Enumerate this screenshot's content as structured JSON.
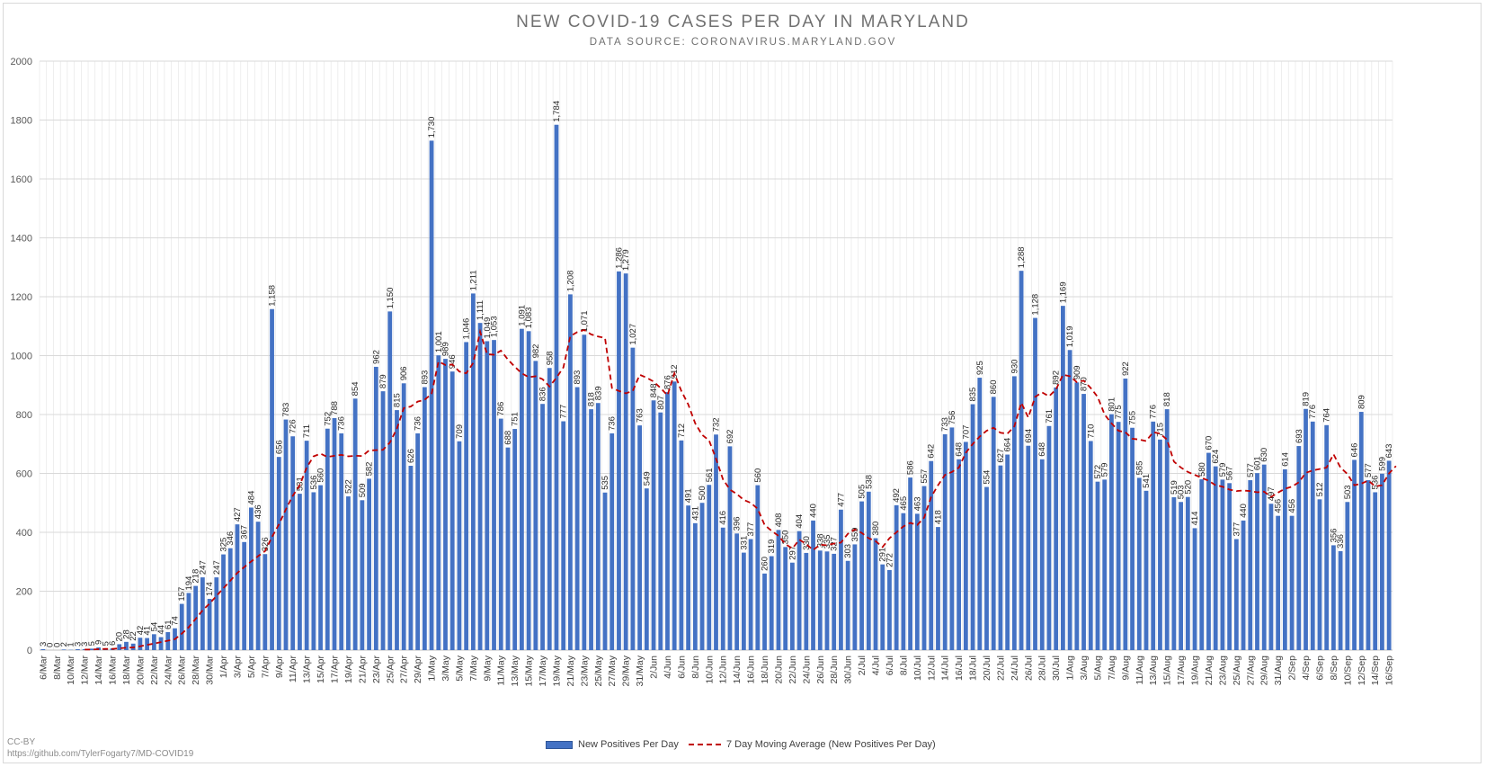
{
  "chart_data": {
    "type": "bar",
    "title": "NEW COVID-19 CASES PER DAY IN MARYLAND",
    "subtitle": "DATA SOURCE: CORONAVIRUS.MARYLAND.GOV",
    "xlabel": "",
    "ylabel": "",
    "ylim": [
      0,
      2000
    ],
    "yticks": [
      0,
      200,
      400,
      600,
      800,
      1000,
      1200,
      1400,
      1600,
      1800,
      2000
    ],
    "start_date": "2020-03-06",
    "end_date": "2020-09-16",
    "tick_labels": [
      "6/Mar",
      "8/Mar",
      "10/Mar",
      "12/Mar",
      "14/Mar",
      "16/Mar",
      "18/Mar",
      "20/Mar",
      "22/Mar",
      "24/Mar",
      "26/Mar",
      "28/Mar",
      "30/Mar",
      "1/Apr",
      "3/Apr",
      "5/Apr",
      "7/Apr",
      "9/Apr",
      "11/Apr",
      "13/Apr",
      "15/Apr",
      "17/Apr",
      "19/Apr",
      "21/Apr",
      "23/Apr",
      "25/Apr",
      "27/Apr",
      "29/Apr",
      "1/May",
      "3/May",
      "5/May",
      "7/May",
      "9/May",
      "11/May",
      "13/May",
      "15/May",
      "17/May",
      "19/May",
      "21/May",
      "23/May",
      "25/May",
      "27/May",
      "29/May",
      "31/May",
      "2/Jun",
      "4/Jun",
      "6/Jun",
      "8/Jun",
      "10/Jun",
      "12/Jun",
      "14/Jun",
      "16/Jun",
      "18/Jun",
      "20/Jun",
      "22/Jun",
      "24/Jun",
      "26/Jun",
      "28/Jun",
      "30/Jun",
      "2/Jul",
      "4/Jul",
      "6/Jul",
      "8/Jul",
      "10/Jul",
      "12/Jul",
      "14/Jul",
      "16/Jul",
      "18/Jul",
      "20/Jul",
      "22/Jul",
      "24/Jul",
      "26/Jul",
      "28/Jul",
      "30/Jul",
      "1/Aug",
      "3/Aug",
      "5/Aug",
      "7/Aug",
      "9/Aug",
      "11/Aug",
      "13/Aug",
      "15/Aug",
      "17/Aug",
      "19/Aug",
      "21/Aug",
      "23/Aug",
      "25/Aug",
      "27/Aug",
      "29/Aug",
      "31/Aug",
      "2/Sep",
      "4/Sep",
      "6/Sep",
      "8/Sep",
      "10/Sep",
      "12/Sep",
      "14/Sep",
      "16/Sep"
    ],
    "series": [
      {
        "name": "New Positives Per Day",
        "type": "bar",
        "color": "#4472c4",
        "values": [
          3,
          0,
          0,
          2,
          1,
          3,
          3,
          5,
          9,
          5,
          6,
          20,
          28,
          22,
          42,
          41,
          54,
          44,
          61,
          74,
          157,
          194,
          218,
          247,
          174,
          247,
          325,
          346,
          427,
          367,
          484,
          436,
          326,
          1158,
          656,
          783,
          726,
          531,
          711,
          536,
          560,
          752,
          788,
          736,
          522,
          854,
          509,
          582,
          962,
          879,
          1150,
          815,
          906,
          626,
          736,
          893,
          1730,
          1001,
          989,
          946,
          709,
          1046,
          1211,
          1111,
          1049,
          1053,
          786,
          688,
          751,
          1091,
          1083,
          982,
          836,
          958,
          1784,
          777,
          1208,
          893,
          1071,
          818,
          839,
          535,
          736,
          1286,
          1279,
          1027,
          763,
          549,
          848,
          807,
          876,
          912,
          712,
          491,
          431,
          500,
          561,
          732,
          416,
          692,
          396,
          331,
          377,
          560,
          260,
          319,
          408,
          350,
          297,
          404,
          330,
          440,
          338,
          335,
          327,
          477,
          303,
          359,
          505,
          538,
          380,
          291,
          272,
          492,
          465,
          586,
          463,
          557,
          642,
          418,
          733,
          756,
          648,
          707,
          835,
          925,
          554,
          860,
          627,
          664,
          930,
          1288,
          694,
          1128,
          648,
          761,
          892,
          1169,
          1019,
          909,
          870,
          710,
          572,
          579,
          801,
          775,
          922,
          755,
          585,
          541,
          776,
          715,
          818,
          519,
          503,
          520,
          414,
          580,
          670,
          624,
          579,
          567,
          377,
          440,
          577,
          601,
          630,
          497,
          456,
          614,
          456,
          693,
          819,
          776,
          512,
          764,
          356,
          336,
          503,
          646,
          809,
          577,
          536,
          599,
          643
        ],
        "labels": [
          "3",
          "0",
          "0",
          "2",
          "1",
          "3",
          "3",
          "5",
          "9",
          "5",
          "6",
          "20",
          "28",
          "22",
          "42",
          "41",
          "54",
          "44",
          "61",
          "74",
          "157",
          "194",
          "218",
          "247",
          "174",
          "247",
          "325",
          "346",
          "427",
          "367",
          "484",
          "436",
          "326",
          "1,158",
          "656",
          "783",
          "726",
          "531",
          "711",
          "536",
          "560",
          "752",
          "788",
          "736",
          "522",
          "854",
          "509",
          "582",
          "962",
          "879",
          "1,150",
          "815",
          "906",
          "626",
          "736",
          "893",
          "1,730",
          "1,001",
          "989",
          "946",
          "709",
          "1,046",
          "1,211",
          "1,111",
          "1,049",
          "1,053",
          "786",
          "688",
          "751",
          "1,091",
          "1,083",
          "982",
          "836",
          "958",
          "1,784",
          "777",
          "1,208",
          "893",
          "1,071",
          "818",
          "839",
          "535",
          "736",
          "1,286",
          "1,279",
          "1,027",
          "763",
          "549",
          "848",
          "807",
          "876",
          "912",
          "712",
          "491",
          "431",
          "500",
          "561",
          "732",
          "416",
          "692",
          "396",
          "331",
          "377",
          "560",
          "260",
          "319",
          "408",
          "350",
          "297",
          "404",
          "330",
          "440",
          "338",
          "335",
          "327",
          "477",
          "303",
          "359",
          "505",
          "538",
          "380",
          "291",
          "272",
          "492",
          "465",
          "586",
          "463",
          "557",
          "642",
          "418",
          "733",
          "756",
          "648",
          "707",
          "835",
          "925",
          "554",
          "860",
          "627",
          "664",
          "930",
          "1,288",
          "694",
          "1,128",
          "648",
          "761",
          "892",
          "1,169",
          "1,019",
          "909",
          "870",
          "710",
          "572",
          "579",
          "801",
          "775",
          "922",
          "755",
          "585",
          "541",
          "776",
          "715",
          "818",
          "519",
          "503",
          "520",
          "414",
          "580",
          "670",
          "624",
          "579",
          "567",
          "377",
          "440",
          "577",
          "601",
          "630",
          "497",
          "456",
          "614",
          "456",
          "693",
          "819",
          "776",
          "512",
          "764",
          "356",
          "336",
          "503",
          "646",
          "809",
          "577",
          "536",
          "599",
          "643"
        ]
      },
      {
        "name": "7 Day Moving Average (New Positives Per Day)",
        "type": "line",
        "style": "dashed",
        "color": "#c00000",
        "values": [
          null,
          null,
          null,
          null,
          null,
          null,
          2,
          2,
          3,
          4,
          4,
          6,
          8,
          9,
          13,
          18,
          22,
          27,
          32,
          37,
          56,
          78,
          106,
          135,
          158,
          184,
          210,
          236,
          262,
          282,
          301,
          319,
          336,
          384,
          427,
          478,
          524,
          560,
          620,
          658,
          667,
          656,
          660,
          663,
          658,
          660,
          659,
          678,
          679,
          680,
          705,
          752,
          822,
          827,
          844,
          850,
          870,
          980,
          968,
          970,
          946,
          940,
          975,
          1081,
          1005,
          1003,
          1017,
          987,
          962,
          940,
          927,
          930,
          920,
          895,
          925,
          960,
          1066,
          1080,
          1087,
          1072,
          1065,
          1060,
          890,
          880,
          872,
          880,
          935,
          925,
          912,
          890,
          865,
          940,
          880,
          834,
          770,
          731,
          712,
          650,
          580,
          545,
          530,
          510,
          500,
          480,
          425,
          405,
          388,
          360,
          345,
          375,
          360,
          340,
          358,
          356,
          362,
          365,
          395,
          410,
          398,
          380,
          370,
          350,
          380,
          400,
          420,
          432,
          425,
          450,
          520,
          560,
          595,
          605,
          620,
          670,
          700,
          725,
          745,
          755,
          738,
          735,
          760,
          840,
          790,
          860,
          875,
          862,
          885,
          935,
          930,
          910,
          915,
          890,
          860,
          800,
          770,
          745,
          740,
          718,
          715,
          710,
          740,
          735,
          715,
          640,
          620,
          605,
          595,
          585,
          575,
          560,
          555,
          545,
          540,
          542,
          540,
          536,
          538,
          520,
          535,
          548,
          555,
          570,
          602,
          610,
          615,
          620,
          665,
          620,
          598,
          560,
          565,
          576,
          556,
          560,
          600,
          625
        ]
      }
    ],
    "legend": {
      "position": "bottom-center"
    },
    "grid": {
      "vertical": true,
      "horizontal": true
    }
  },
  "footer": {
    "license": "CC-BY",
    "url": "https://github.com/TylerFogarty7/MD-COVID19"
  },
  "legend_labels": {
    "bars": "New Positives Per Day",
    "line": "7 Day Moving Average (New Positives Per Day)"
  }
}
